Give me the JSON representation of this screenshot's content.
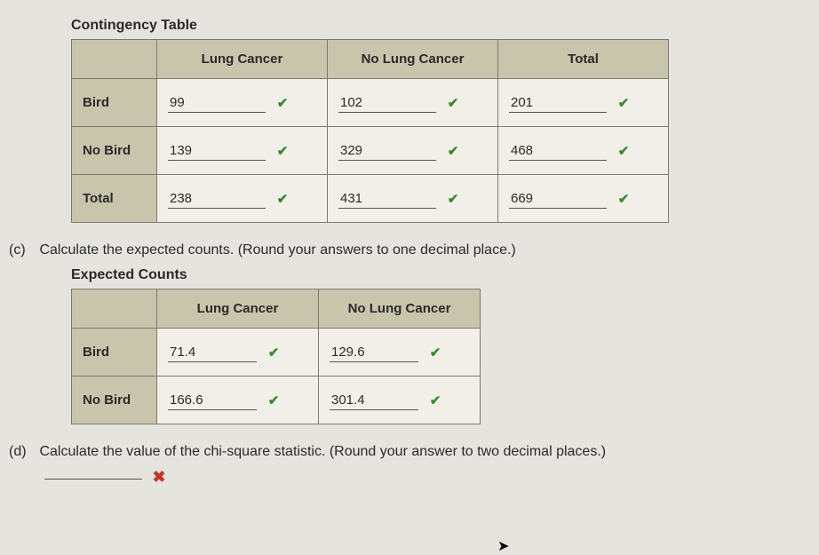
{
  "contingency": {
    "title": "Contingency Table",
    "columns": [
      "Lung Cancer",
      "No Lung Cancer",
      "Total"
    ],
    "rows": [
      {
        "label": "Bird",
        "cells": [
          {
            "v": "99",
            "ok": true
          },
          {
            "v": "102",
            "ok": true
          },
          {
            "v": "201",
            "ok": true
          }
        ]
      },
      {
        "label": "No Bird",
        "cells": [
          {
            "v": "139",
            "ok": true
          },
          {
            "v": "329",
            "ok": true
          },
          {
            "v": "468",
            "ok": true
          }
        ]
      },
      {
        "label": "Total",
        "cells": [
          {
            "v": "238",
            "ok": true
          },
          {
            "v": "431",
            "ok": true
          },
          {
            "v": "669",
            "ok": true
          }
        ]
      }
    ],
    "header_bg": "#c9c5ad",
    "cell_bg": "#f1efe8",
    "border_color": "#7a7a70"
  },
  "part_c": {
    "label": "(c)",
    "prompt": "Calculate the expected counts. (Round your answers to one decimal place.)"
  },
  "expected": {
    "title": "Expected Counts",
    "columns": [
      "Lung Cancer",
      "No Lung Cancer"
    ],
    "rows": [
      {
        "label": "Bird",
        "cells": [
          {
            "v": "71.4",
            "ok": true
          },
          {
            "v": "129.6",
            "ok": true
          }
        ]
      },
      {
        "label": "No Bird",
        "cells": [
          {
            "v": "166.6",
            "ok": true
          },
          {
            "v": "301.4",
            "ok": true
          }
        ]
      }
    ]
  },
  "part_d": {
    "label": "(d)",
    "prompt": "Calculate the value of the chi-square statistic. (Round your answer to two decimal places.)",
    "answer": {
      "v": "",
      "ok": false
    }
  },
  "marks": {
    "correct_glyph": "✔",
    "wrong_glyph": "✖",
    "correct_color": "#3b8a2e",
    "wrong_color": "#c0392b"
  },
  "page_bg": "#e6e4df",
  "font_family": "Arial"
}
